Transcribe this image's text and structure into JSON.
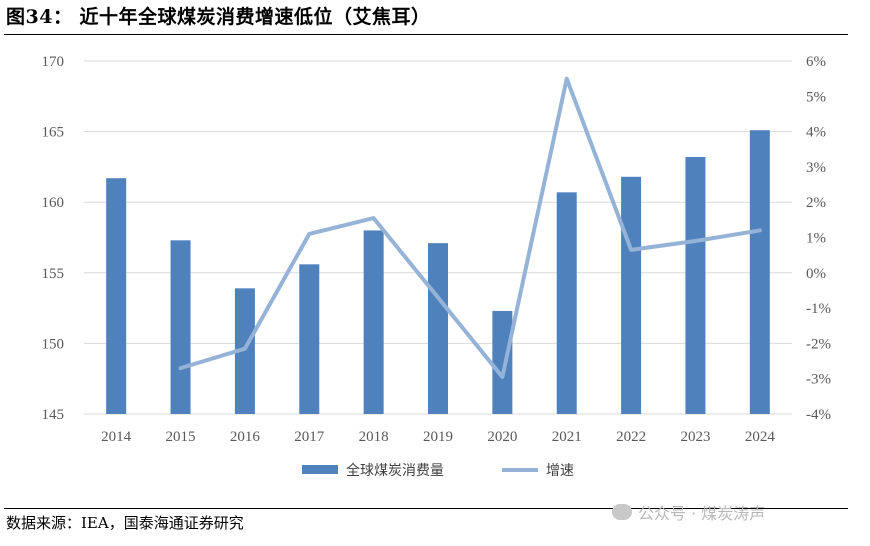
{
  "header": {
    "title": "图34：  近十年全球煤炭消费增速低位（艾焦耳）"
  },
  "footer": {
    "source": "数据来源：IEA，国泰海通证券研究"
  },
  "watermark": {
    "text": "公众号 · 煤炭涛声",
    "icon": "wechat-icon"
  },
  "colors": {
    "bar": "#4f81bd",
    "line": "#95b3d7",
    "axis_text": "#595959"
  },
  "chart_data": {
    "type": "bar",
    "categories": [
      "2014",
      "2015",
      "2016",
      "2017",
      "2018",
      "2019",
      "2020",
      "2021",
      "2022",
      "2023",
      "2024"
    ],
    "series": [
      {
        "name": "全球煤炭消费量",
        "type": "bar",
        "axis": "left",
        "values": [
          161.7,
          157.3,
          153.9,
          155.6,
          158.0,
          157.1,
          152.3,
          160.7,
          161.8,
          163.2,
          165.1
        ]
      },
      {
        "name": "增速",
        "type": "line",
        "axis": "right",
        "values": [
          null,
          -2.7,
          -2.15,
          1.1,
          1.55,
          null,
          -2.95,
          5.5,
          0.65,
          0.9,
          1.2
        ]
      }
    ],
    "left_axis": {
      "min": 145,
      "max": 170,
      "step": 5,
      "ticks": [
        "145",
        "150",
        "155",
        "160",
        "165",
        "170"
      ]
    },
    "right_axis": {
      "min": -4,
      "max": 6,
      "step": 1,
      "ticks": [
        "-4%",
        "-3%",
        "-2%",
        "-1%",
        "0%",
        "1%",
        "2%",
        "3%",
        "4%",
        "5%",
        "6%"
      ]
    },
    "grid": true,
    "legend": "bottom"
  }
}
